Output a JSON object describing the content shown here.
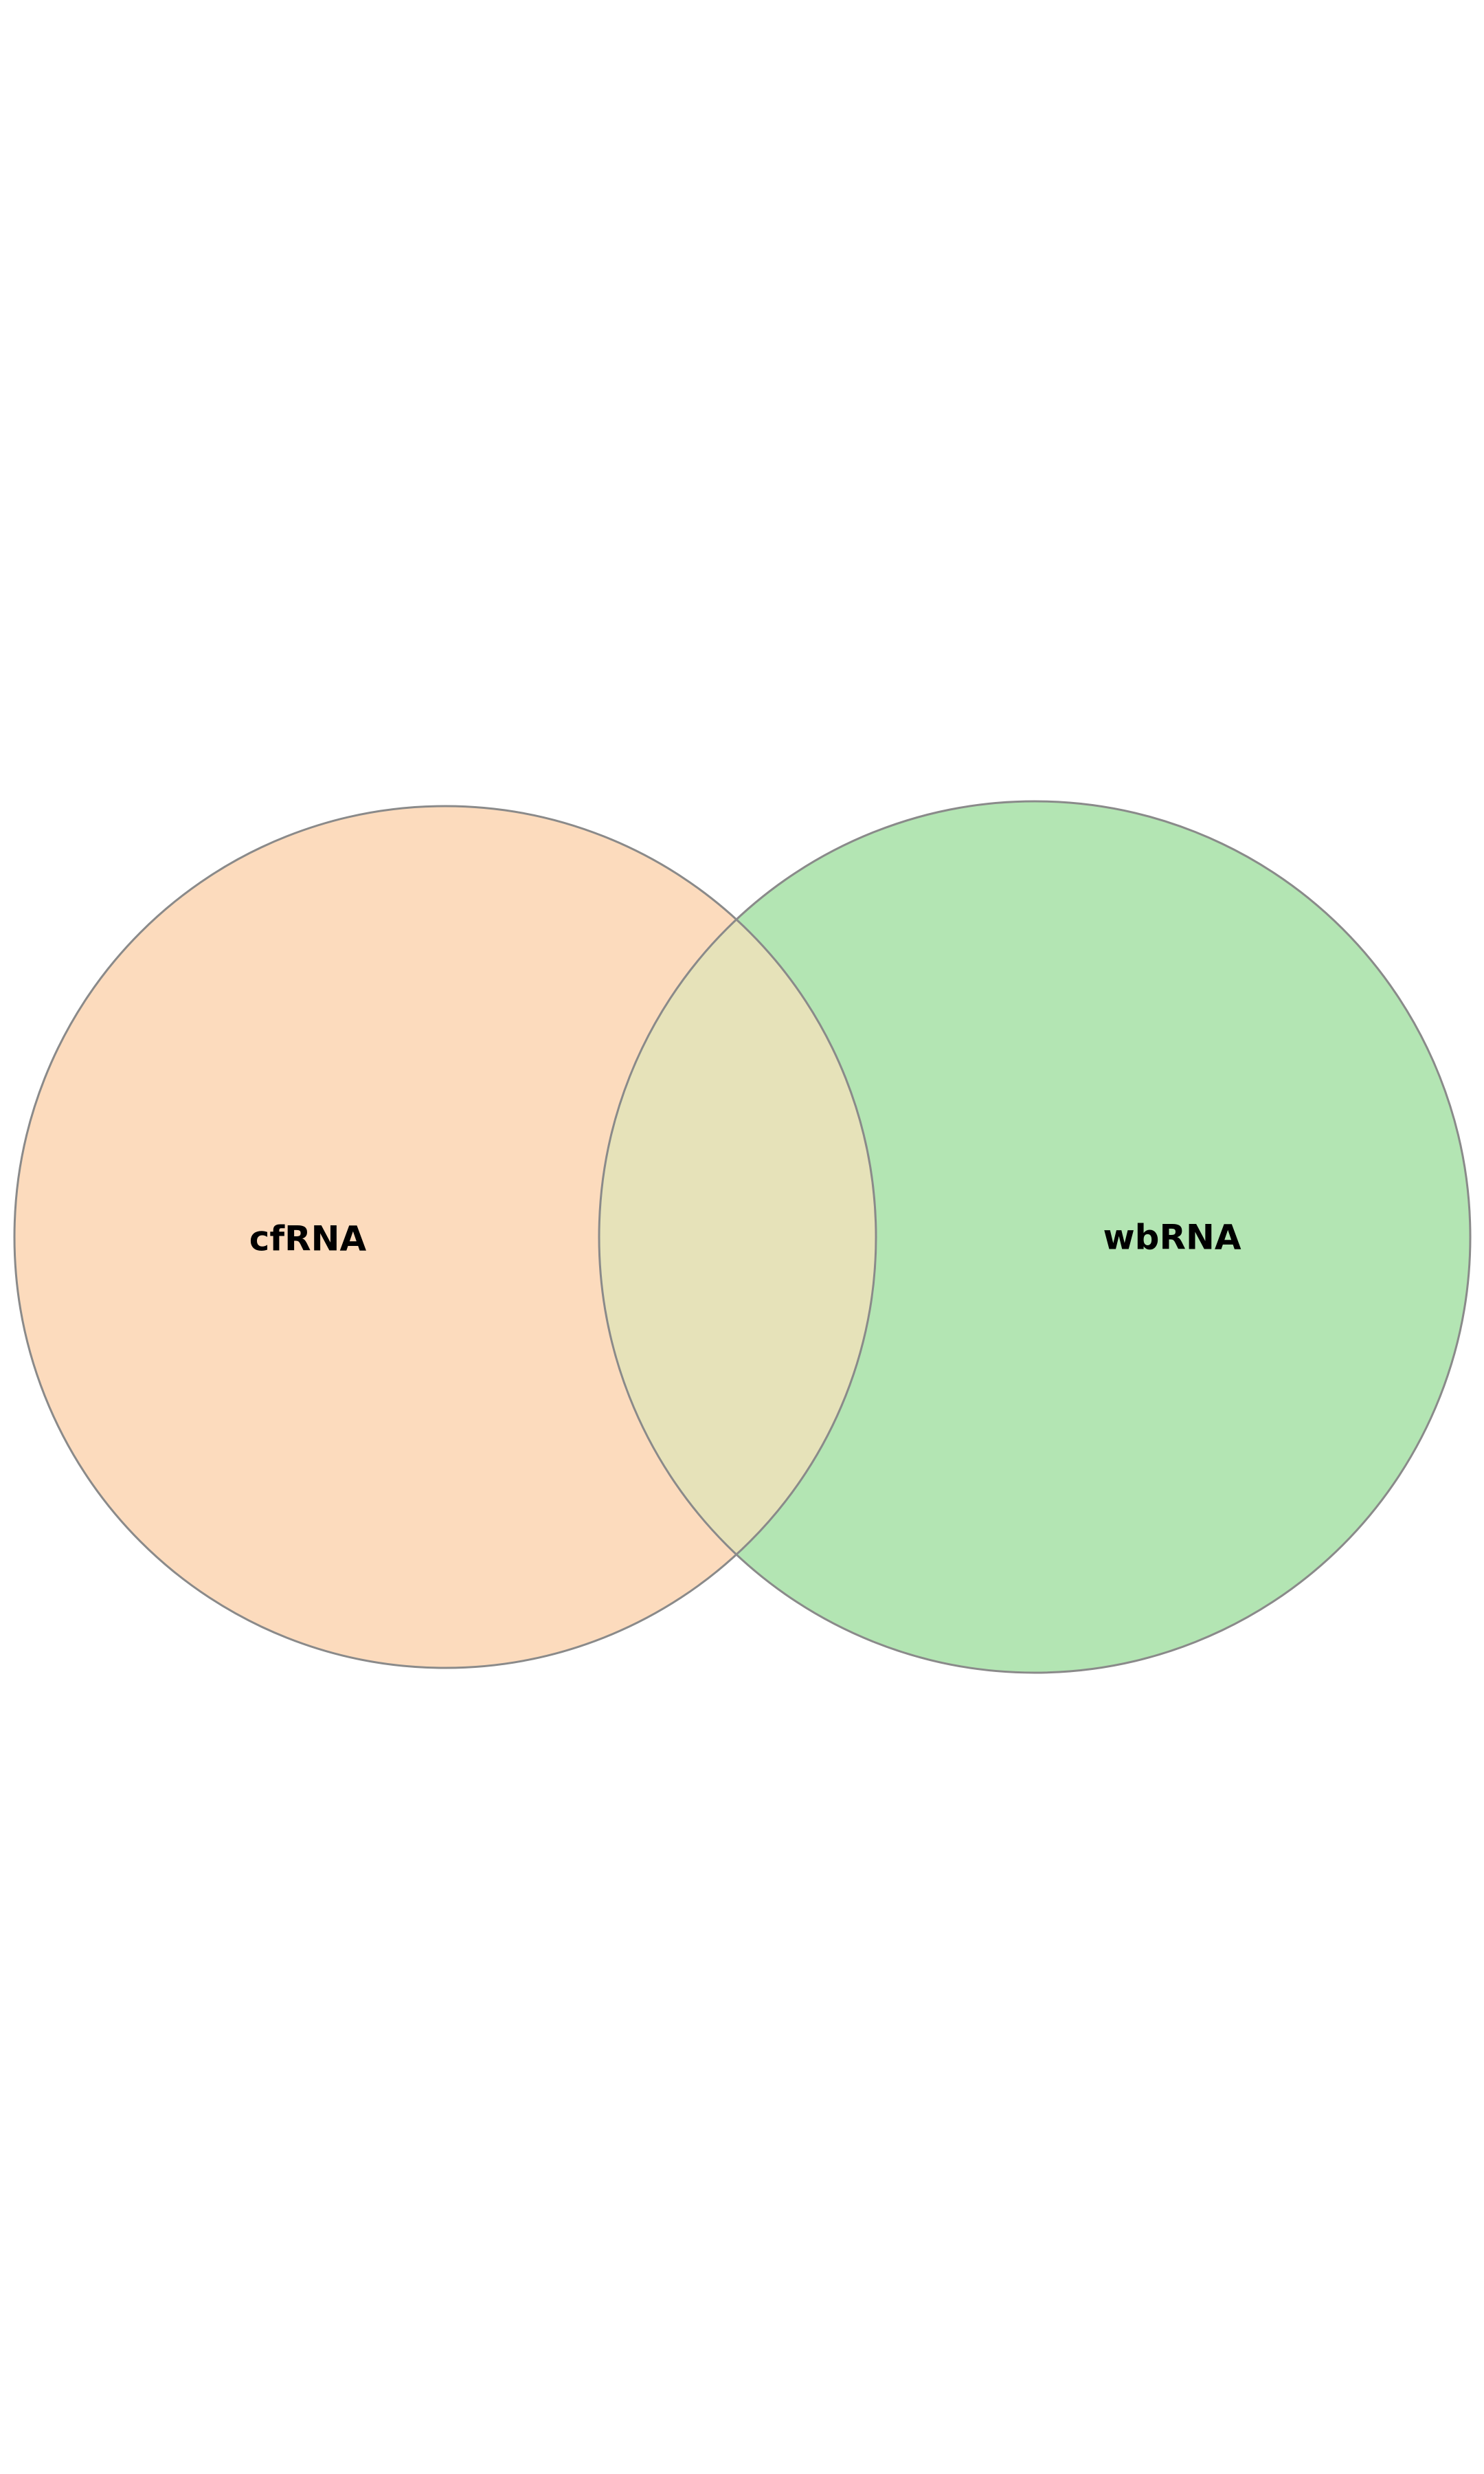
{
  "diagram": {
    "type": "venn",
    "sets": [
      {
        "label": "cfRNA",
        "color": "#fcdbbd"
      },
      {
        "label": "wbRNA",
        "color": "#b3e5b3"
      }
    ],
    "overlap_color": "#e6e2b9",
    "outline_color": "#8a8a8a"
  }
}
